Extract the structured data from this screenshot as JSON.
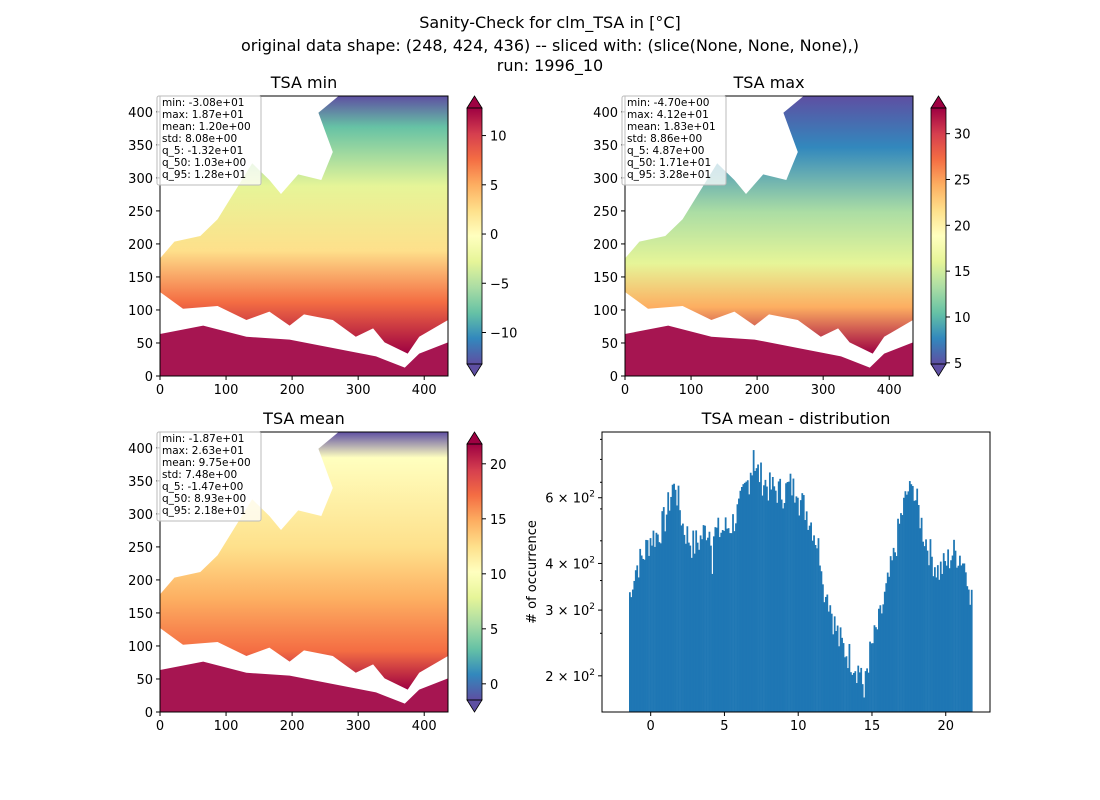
{
  "figure": {
    "title_lines": [
      "Sanity-Check for clm_TSA in [°C]",
      "original data shape: (248, 424, 436) -- sliced with: (slice(None, None, None),)",
      "run: 1996_10"
    ]
  },
  "chart_data": [
    {
      "type": "heatmap",
      "title": "TSA min",
      "x_ticks": [
        0,
        100,
        200,
        300,
        400
      ],
      "y_ticks": [
        0,
        50,
        100,
        150,
        200,
        250,
        300,
        350,
        400
      ],
      "xlim": [
        0,
        436
      ],
      "ylim": [
        0,
        424
      ],
      "colormap": "Spectral_r",
      "colorbar": {
        "vmin": -13.2,
        "vmax": 12.8,
        "ticks": [
          -10,
          -5,
          0,
          5,
          10
        ],
        "extend": "both"
      },
      "stats": [
        "min: -3.08e+01",
        "max: 1.87e+01",
        "mean: 1.20e+00",
        "std: 8.08e+00",
        "q_5: -1.32e+01",
        "q_50: 1.03e+00",
        "q_95: 1.28e+01"
      ]
    },
    {
      "type": "heatmap",
      "title": "TSA max",
      "x_ticks": [
        0,
        100,
        200,
        300,
        400
      ],
      "y_ticks": [
        0,
        50,
        100,
        150,
        200,
        250,
        300,
        350,
        400
      ],
      "xlim": [
        0,
        436
      ],
      "ylim": [
        0,
        424
      ],
      "colormap": "Spectral_r",
      "colorbar": {
        "vmin": 4.87,
        "vmax": 32.8,
        "ticks": [
          5,
          10,
          15,
          20,
          25,
          30
        ],
        "extend": "both"
      },
      "stats": [
        "min: -4.70e+00",
        "max: 4.12e+01",
        "mean: 1.83e+01",
        "std: 8.86e+00",
        "q_5: 4.87e+00",
        "q_50: 1.71e+01",
        "q_95: 3.28e+01"
      ]
    },
    {
      "type": "heatmap",
      "title": "TSA mean",
      "x_ticks": [
        0,
        100,
        200,
        300,
        400
      ],
      "y_ticks": [
        0,
        50,
        100,
        150,
        200,
        250,
        300,
        350,
        400
      ],
      "xlim": [
        0,
        436
      ],
      "ylim": [
        0,
        424
      ],
      "colormap": "Spectral_r",
      "colorbar": {
        "vmin": -1.47,
        "vmax": 21.8,
        "ticks": [
          0,
          5,
          10,
          15,
          20
        ],
        "extend": "both"
      },
      "stats": [
        "min: -1.87e+01",
        "max: 2.63e+01",
        "mean: 9.75e+00",
        "std: 7.48e+00",
        "q_5: -1.47e+00",
        "q_50: 8.93e+00",
        "q_95: 2.18e+01"
      ]
    },
    {
      "type": "bar",
      "title": "TSA mean - distribution",
      "ylabel": "# of occurrence",
      "xlim": [
        -3.3,
        23.0
      ],
      "x_ticks": [
        0,
        5,
        10,
        15,
        20
      ],
      "y_scale": "log",
      "ylim": [
        160,
        900
      ],
      "y_tick_labels": [
        {
          "value": 200,
          "mantissa": "2",
          "exp": "2"
        },
        {
          "value": 300,
          "mantissa": "3",
          "exp": "2"
        },
        {
          "value": 400,
          "mantissa": "4",
          "exp": "2"
        },
        {
          "value": 600,
          "mantissa": "6",
          "exp": "2"
        }
      ],
      "color": "#1f77b4",
      "bins": [
        -1.47,
        21.8
      ],
      "profile": [
        [
          -1.47,
          345
        ],
        [
          -1.0,
          390
        ],
        [
          -0.5,
          420
        ],
        [
          0.0,
          470
        ],
        [
          0.5,
          480
        ],
        [
          1.0,
          530
        ],
        [
          1.5,
          640
        ],
        [
          1.8,
          610
        ],
        [
          2.2,
          500
        ],
        [
          2.8,
          450
        ],
        [
          3.3,
          460
        ],
        [
          3.8,
          500
        ],
        [
          4.2,
          480
        ],
        [
          4.8,
          490
        ],
        [
          5.5,
          510
        ],
        [
          6.0,
          560
        ],
        [
          6.5,
          650
        ],
        [
          7.0,
          730
        ],
        [
          7.5,
          680
        ],
        [
          8.0,
          640
        ],
        [
          8.5,
          630
        ],
        [
          9.0,
          620
        ],
        [
          9.5,
          650
        ],
        [
          10.0,
          600
        ],
        [
          10.5,
          560
        ],
        [
          11.0,
          500
        ],
        [
          11.5,
          420
        ],
        [
          12.0,
          330
        ],
        [
          12.5,
          270
        ],
        [
          13.0,
          240
        ],
        [
          13.5,
          225
        ],
        [
          14.0,
          210
        ],
        [
          14.5,
          200
        ],
        [
          15.0,
          240
        ],
        [
          15.5,
          280
        ],
        [
          16.0,
          340
        ],
        [
          16.5,
          420
        ],
        [
          17.0,
          540
        ],
        [
          17.5,
          640
        ],
        [
          18.0,
          590
        ],
        [
          18.5,
          480
        ],
        [
          19.0,
          420
        ],
        [
          19.5,
          380
        ],
        [
          20.0,
          400
        ],
        [
          20.5,
          430
        ],
        [
          21.0,
          420
        ],
        [
          21.5,
          380
        ],
        [
          21.8,
          340
        ]
      ],
      "notable_bars": [
        [
          -1.4,
          335
        ],
        [
          -1.3,
          325
        ],
        [
          1.5,
          650
        ],
        [
          1.7,
          630
        ],
        [
          3.0,
          425
        ],
        [
          4.2,
          375
        ],
        [
          6.8,
          700
        ],
        [
          7.0,
          805
        ],
        [
          7.2,
          720
        ],
        [
          9.9,
          605
        ],
        [
          10.0,
          600
        ],
        [
          11.8,
          315
        ],
        [
          12.8,
          240
        ],
        [
          14.3,
          210
        ],
        [
          14.4,
          190
        ],
        [
          14.5,
          175
        ],
        [
          17.6,
          665
        ],
        [
          17.8,
          645
        ],
        [
          21.3,
          400
        ],
        [
          21.7,
          310
        ],
        [
          21.8,
          340
        ]
      ]
    }
  ]
}
